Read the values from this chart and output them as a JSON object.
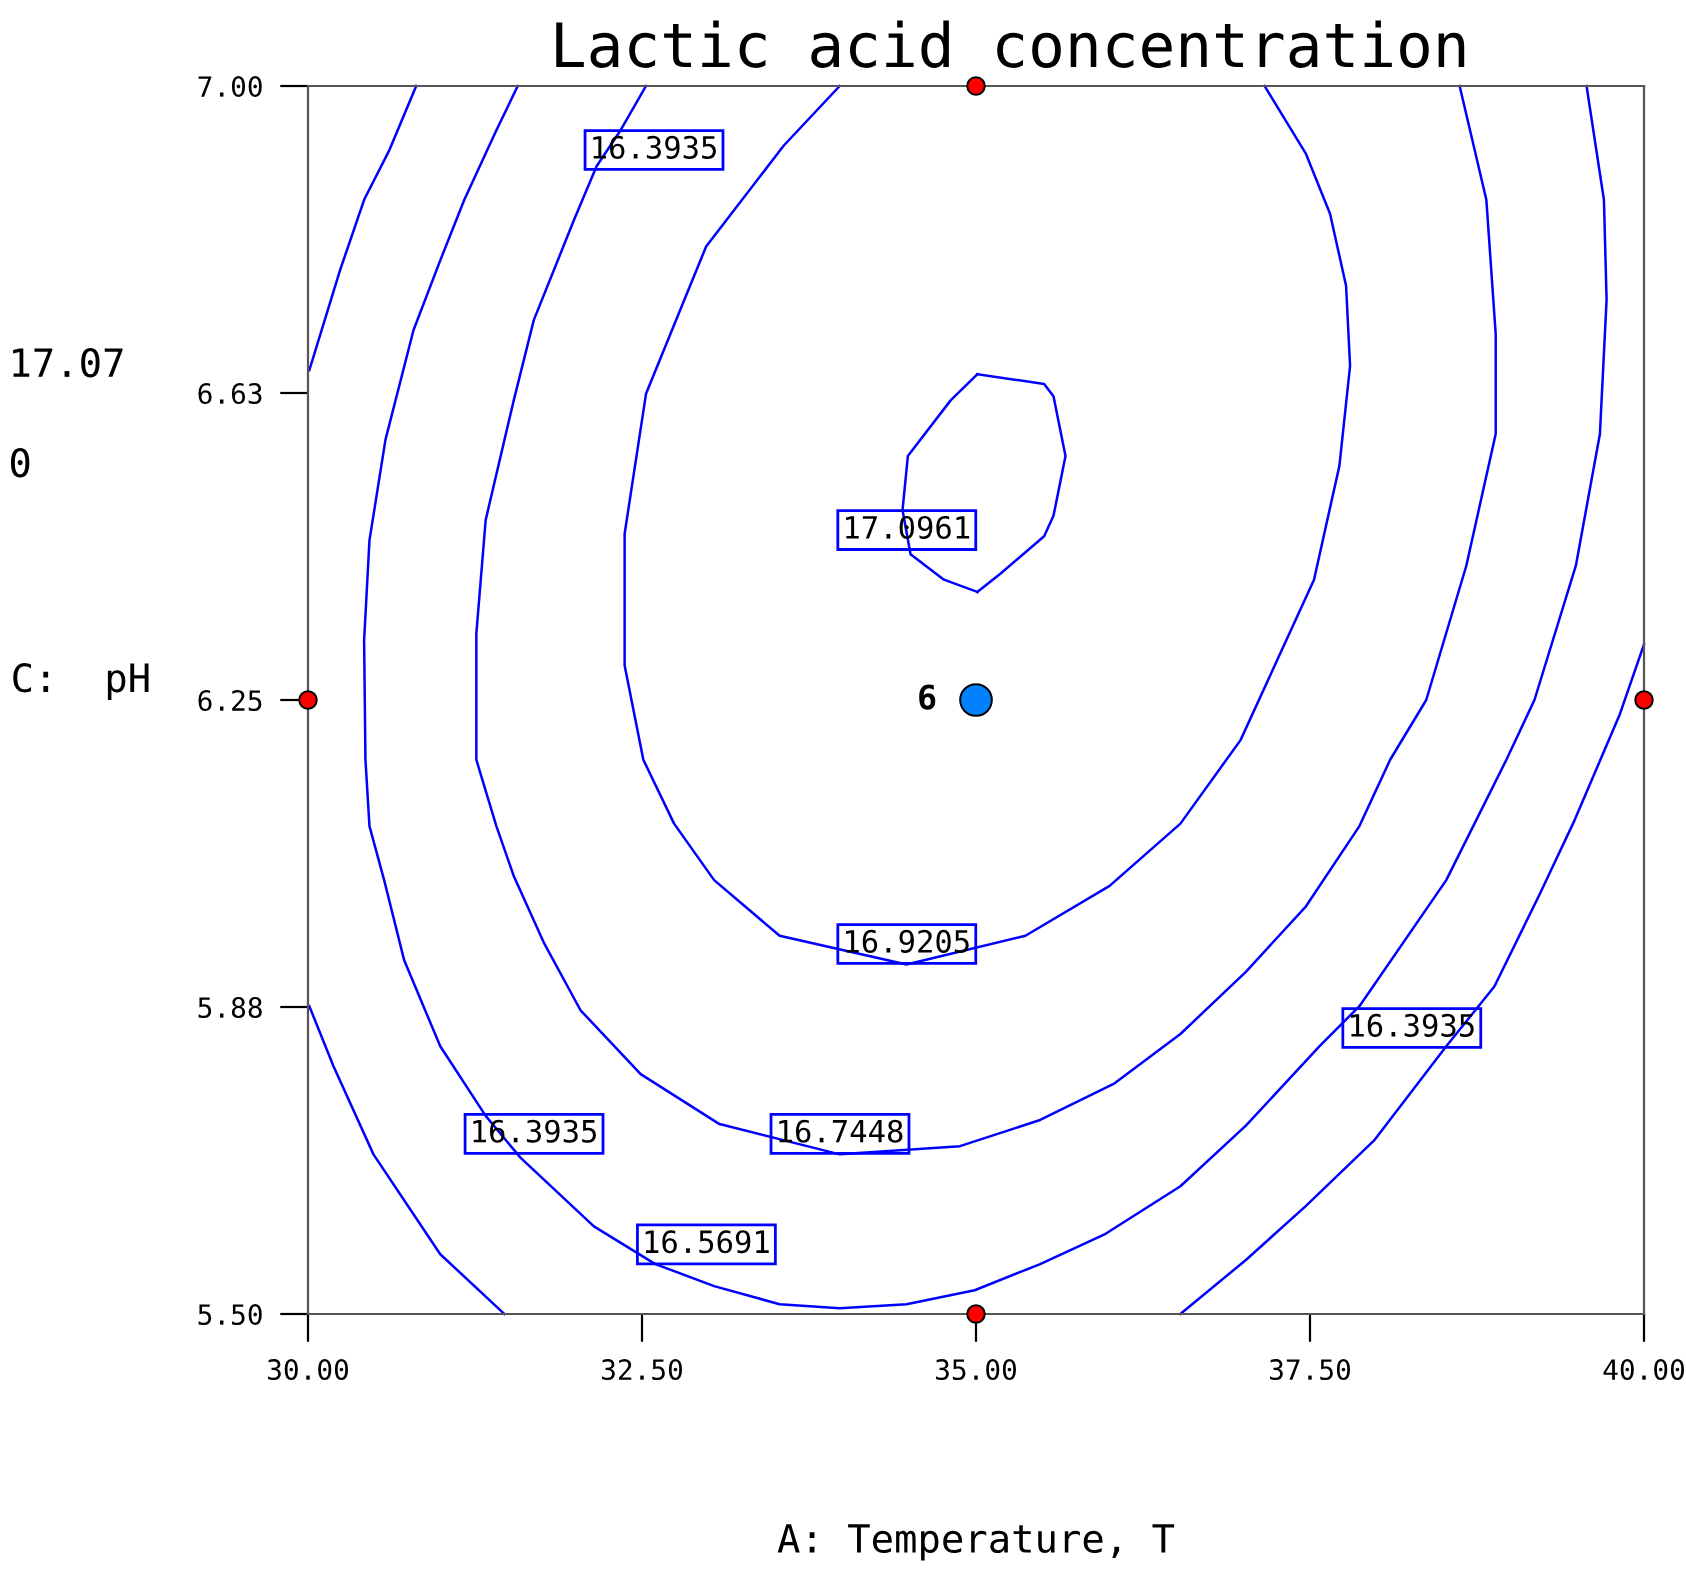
{
  "chart_data": {
    "type": "line",
    "title": "Lactic acid concentration",
    "xlabel": "A: Temperature, T",
    "ylabel": "C:  pH",
    "xlim": [
      30,
      40
    ],
    "ylim": [
      5.5,
      7.0
    ],
    "xticks": [
      {
        "value": 30,
        "label": "30.00"
      },
      {
        "value": 32.5,
        "label": "32.50"
      },
      {
        "value": 35,
        "label": "35.00"
      },
      {
        "value": 37.5,
        "label": "37.50"
      },
      {
        "value": 40,
        "label": "40.00"
      }
    ],
    "yticks": [
      {
        "value": 5.5,
        "label": "5.50"
      },
      {
        "value": 5.875,
        "label": "5.88"
      },
      {
        "value": 6.25,
        "label": "6.25"
      },
      {
        "value": 6.625,
        "label": "6.63"
      },
      {
        "value": 7.0,
        "label": "7.00"
      }
    ],
    "grid": false,
    "legend": false,
    "series": [
      {
        "color": "#0000ff",
        "x": [
          30.81,
          30.61,
          30.42,
          30.24,
          30.01
        ],
        "values": [
          7.0,
          6.922,
          6.861,
          6.775,
          6.653
        ]
      },
      {
        "color": "#0000ff",
        "x": [
          30.01,
          30.19,
          30.49,
          30.99,
          31.47
        ],
        "values": [
          5.876,
          5.803,
          5.695,
          5.573,
          5.5
        ]
      },
      {
        "color": "#0000ff",
        "x": [
          31.57,
          31.41,
          31.17,
          30.99,
          30.79,
          30.58,
          30.46,
          30.42,
          30.43,
          30.46,
          30.57,
          30.72,
          30.99,
          31.33,
          31.59,
          32.14,
          32.6,
          33.04,
          33.53,
          33.98,
          34.48,
          34.99,
          35.48,
          35.97,
          36.53,
          37.02,
          37.57,
          37.87,
          38.52,
          38.97,
          39.18,
          39.49,
          39.67,
          39.72,
          39.7,
          39.57
        ],
        "values": [
          7.0,
          6.946,
          6.861,
          6.787,
          6.702,
          6.568,
          6.445,
          6.323,
          6.177,
          6.096,
          6.03,
          5.932,
          5.827,
          5.742,
          5.691,
          5.607,
          5.561,
          5.534,
          5.512,
          5.507,
          5.512,
          5.529,
          5.561,
          5.598,
          5.656,
          5.73,
          5.827,
          5.876,
          6.03,
          6.177,
          6.25,
          6.414,
          6.575,
          6.739,
          6.861,
          7.0
        ]
      },
      {
        "color": "#0000ff",
        "x": [
          32.53,
          32.34,
          32.16,
          31.99,
          31.69,
          31.54,
          31.33,
          31.26,
          31.26,
          31.41,
          31.54,
          31.77,
          32.04,
          32.49,
          33.08,
          33.98,
          34.88,
          35.48,
          36.03,
          36.53,
          37.02,
          37.47,
          37.87,
          38.1,
          38.37,
          38.67,
          38.89,
          38.89,
          38.82,
          38.62
        ],
        "values": [
          7.0,
          6.946,
          6.902,
          6.836,
          6.714,
          6.616,
          6.47,
          6.331,
          6.177,
          6.096,
          6.035,
          5.952,
          5.871,
          5.793,
          5.732,
          5.695,
          5.705,
          5.737,
          5.781,
          5.842,
          5.918,
          5.998,
          6.096,
          6.177,
          6.25,
          6.414,
          6.575,
          6.697,
          6.861,
          7.0
        ]
      },
      {
        "color": "#0000ff",
        "x": [
          33.98,
          33.56,
          32.98,
          32.53,
          32.37,
          32.37,
          32.51,
          32.74,
          33.04,
          33.53,
          34.48,
          35.37,
          36.0,
          36.53,
          36.98,
          37.53,
          37.72,
          37.8,
          37.77,
          37.65,
          37.47,
          37.16
        ],
        "values": [
          7.0,
          6.927,
          6.804,
          6.624,
          6.453,
          6.292,
          6.177,
          6.099,
          6.03,
          5.962,
          5.927,
          5.962,
          6.023,
          6.099,
          6.201,
          6.397,
          6.536,
          6.658,
          6.756,
          6.844,
          6.917,
          7.0
        ]
      },
      {
        "color": "#0000ff",
        "x": [
          35.01,
          35.51,
          35.58,
          35.67,
          35.58,
          35.51,
          35.18,
          35.01
        ],
        "values": [
          6.648,
          6.636,
          6.621,
          6.548,
          6.475,
          6.45,
          6.404,
          6.382
        ]
      },
      {
        "color": "#0000ff",
        "x": [
          40.0,
          39.82,
          39.48,
          39.22,
          38.88,
          38.52,
          37.98,
          37.47,
          37.02,
          36.53
        ],
        "values": [
          6.318,
          6.233,
          6.103,
          6.013,
          5.9,
          5.827,
          5.712,
          5.632,
          5.566,
          5.5
        ]
      },
      {
        "color": "#0000ff",
        "x": [
          35.01,
          34.76,
          34.51,
          34.45,
          34.49,
          34.81,
          35.01
        ],
        "values": [
          6.382,
          6.397,
          6.428,
          6.482,
          6.548,
          6.616,
          6.648
        ]
      },
      {
        "type": "scatter",
        "marker": "circle",
        "color": "#ff0000",
        "x": [
          35,
          30,
          40,
          35
        ],
        "values": [
          7.0,
          6.25,
          6.25,
          5.5
        ]
      },
      {
        "type": "scatter",
        "marker": "circle",
        "color": "#0080ff",
        "x": [
          35
        ],
        "values": [
          6.25
        ],
        "value_labels": [
          "6"
        ]
      }
    ],
    "annotations": [
      "16.3935",
      "17.0961",
      "16.9205",
      "16.3935",
      "16.3935",
      "16.7448",
      "16.5691",
      "17.07",
      "0"
    ]
  }
}
